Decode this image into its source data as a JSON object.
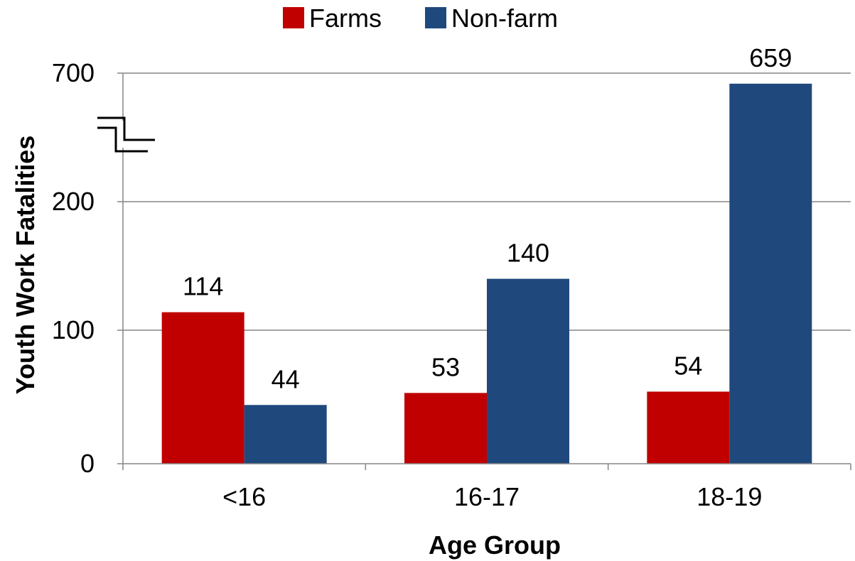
{
  "chart_data": {
    "type": "bar",
    "categories": [
      "<16",
      "16-17",
      "18-19"
    ],
    "series": [
      {
        "name": "Farms",
        "values": [
          114,
          53,
          54
        ],
        "color": "#c00000"
      },
      {
        "name": "Non-farm",
        "values": [
          44,
          140,
          659
        ],
        "color": "#1f497d"
      }
    ],
    "xlabel": "Age Group",
    "ylabel": "Youth Work Fatalities",
    "yticks": [
      0,
      100,
      200,
      700
    ],
    "ylim": [
      0,
      700
    ],
    "axis_break": true,
    "grid": true,
    "legend_position": "top"
  }
}
